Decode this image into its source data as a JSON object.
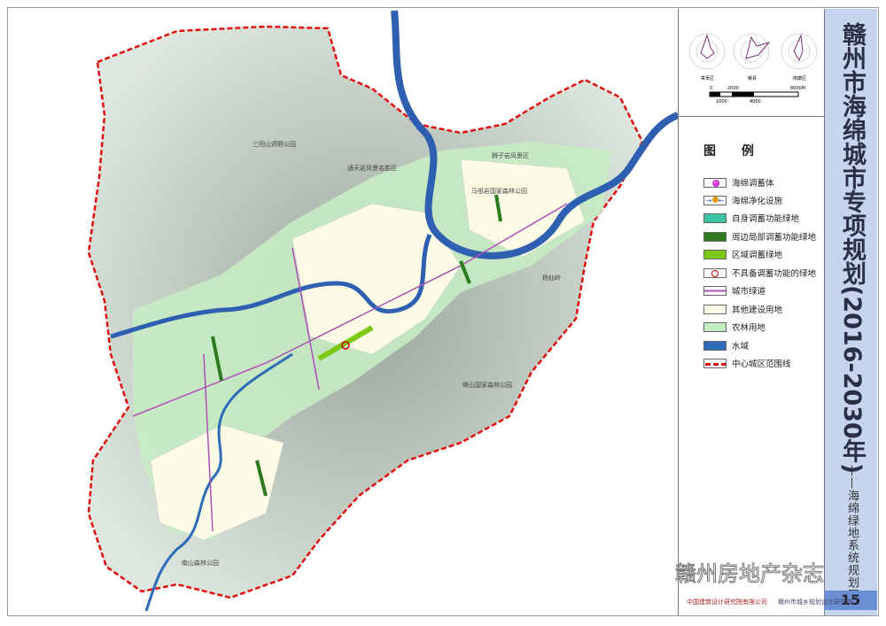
{
  "title": {
    "main": "赣州市海绵城市专项规划(2016-2030年)",
    "subtitle": "——海绵绿地系统规划图",
    "page_number": "15"
  },
  "scale_bar": {
    "top_labels": [
      "0",
      "2000",
      "8000M"
    ],
    "bottom_labels": [
      "1000",
      "4000"
    ]
  },
  "wind_roses": {
    "labels": [
      "章贡区",
      "赣县",
      "南康区"
    ]
  },
  "legend": {
    "heading": "图 例",
    "items": [
      {
        "label": "海绵调蓄体",
        "symbol": "magenta-sphere"
      },
      {
        "label": "海绵净化设施",
        "symbol": "purify-arrows"
      },
      {
        "label": "自身调蓄功能绿地",
        "color": "#3cc3a0"
      },
      {
        "label": "周边局部调蓄功能绿地",
        "color": "#2f7a1f"
      },
      {
        "label": "区域调蓄绿地",
        "color": "#7cc814"
      },
      {
        "label": "不具备调蓄功能的绿地",
        "symbol": "red-circle"
      },
      {
        "label": "城市绿道",
        "color": "#b04fb8"
      },
      {
        "label": "其他建设用地",
        "color": "#fdfde9"
      },
      {
        "label": "农林用地",
        "color": "#c6ecc4"
      },
      {
        "label": "水域",
        "color": "#2e6bb8"
      },
      {
        "label": "中心城区范围线",
        "color": "#e01010"
      }
    ]
  },
  "map_labels": [
    "三阳山郊野公园",
    "通天岩风景名胜区",
    "狮子岩风景区",
    "马祖岩国家森林公园",
    "杨仙岭",
    "峰山国家森林公园",
    "南山森林公园"
  ],
  "watermark": "赣州房地产杂志",
  "organizations": [
    "中国建筑设计研究院有限公司",
    "赣州市城乡规划设计研究院"
  ]
}
